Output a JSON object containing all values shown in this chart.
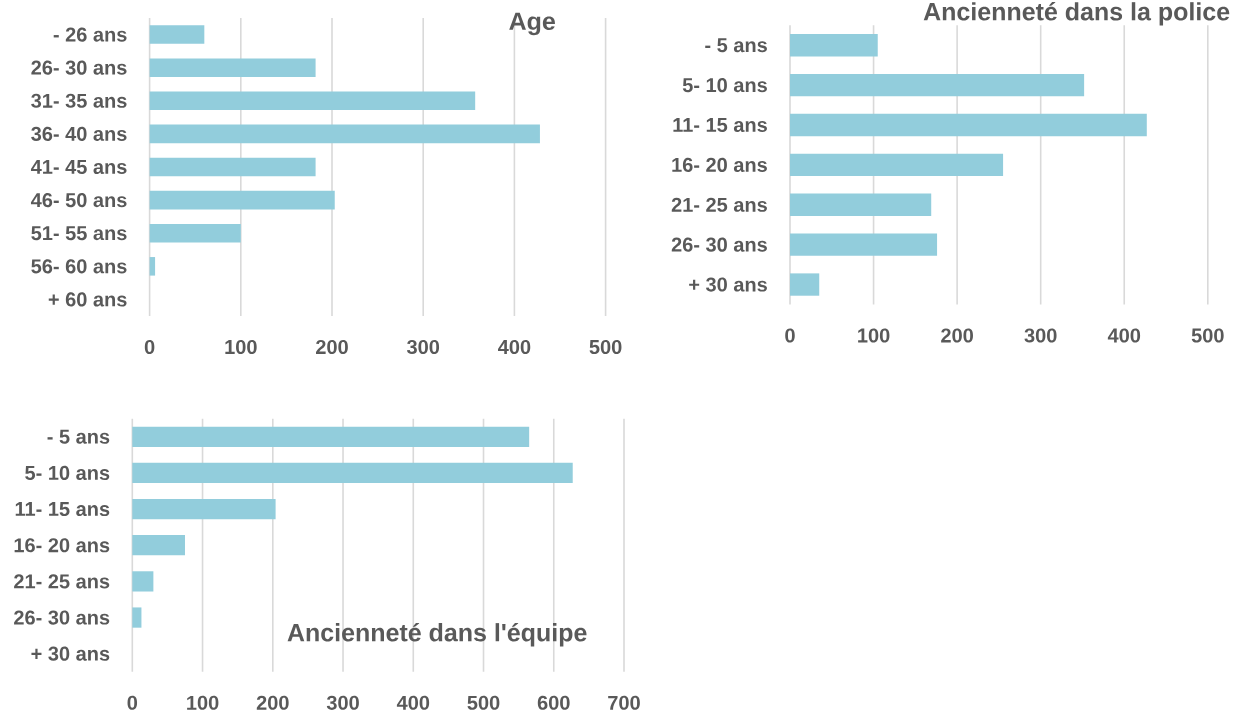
{
  "chart_data": [
    {
      "type": "bar",
      "orientation": "horizontal",
      "title": "Age",
      "categories": [
        "- 26 ans",
        "26- 30 ans",
        "31- 35 ans",
        "36- 40 ans",
        "41- 45 ans",
        "46- 50 ans",
        "51- 55 ans",
        "56- 60 ans",
        "+ 60 ans"
      ],
      "values": [
        60,
        182,
        357,
        428,
        182,
        203,
        100,
        6,
        0
      ],
      "color": "#92cddc",
      "xlim": [
        0,
        500
      ],
      "xticks": [
        0,
        100,
        200,
        300,
        400,
        500
      ],
      "grid": "x"
    },
    {
      "type": "bar",
      "orientation": "horizontal",
      "title": "Ancienneté dans la police",
      "categories": [
        "- 5 ans",
        "5- 10 ans",
        "11- 15 ans",
        "16- 20 ans",
        "21- 25 ans",
        "26- 30 ans",
        "+ 30 ans"
      ],
      "values": [
        105,
        352,
        427,
        255,
        169,
        176,
        35
      ],
      "color": "#92cddc",
      "xlim": [
        0,
        500
      ],
      "xticks": [
        0,
        100,
        200,
        300,
        400,
        500
      ],
      "grid": "x"
    },
    {
      "type": "bar",
      "orientation": "horizontal",
      "title": "Ancienneté dans l'équipe",
      "categories": [
        "- 5 ans",
        "5- 10 ans",
        "11- 15 ans",
        "16- 20 ans",
        "21- 25 ans",
        "26- 30 ans",
        "+ 30 ans"
      ],
      "values": [
        565,
        627,
        204,
        75,
        30,
        13,
        0
      ],
      "color": "#92cddc",
      "xlim": [
        0,
        700
      ],
      "xticks": [
        0,
        100,
        200,
        300,
        400,
        500,
        600,
        700
      ],
      "grid": "x"
    }
  ]
}
